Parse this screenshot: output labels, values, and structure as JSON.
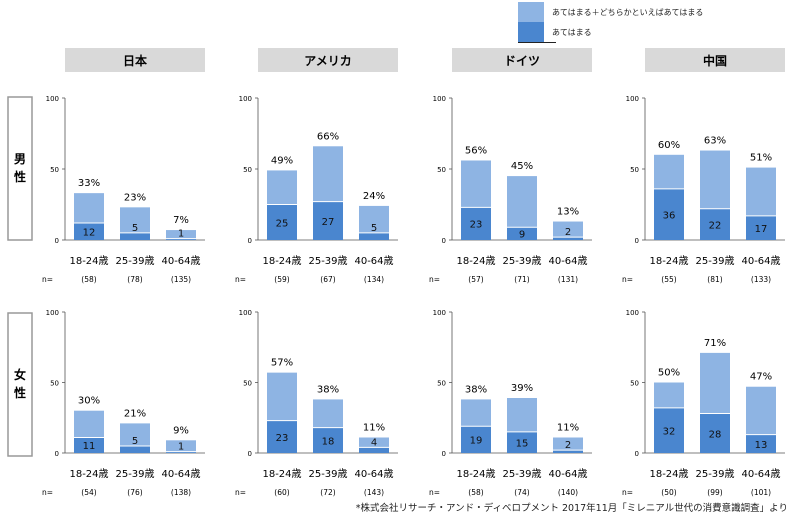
{
  "legend": {
    "items": [
      {
        "label": "あてはまる＋どちらかといえばあてはまる",
        "color": "#8eb4e3"
      },
      {
        "label": "あてはまる",
        "color": "#4a86cf"
      }
    ]
  },
  "colors": {
    "total": "#8eb4e3",
    "core": "#4a86cf",
    "header_bg": "#d9d9d9",
    "border": "#999999"
  },
  "footnote": "*株式会社リサーチ・アンド・ディベロプメント 2017年11月「ミレニアル世代の消費意識調査」より",
  "n_prefix": "n=",
  "gender_labels": [
    "男\n性",
    "女\n性"
  ],
  "chart_data": {
    "type": "bar",
    "subtype": "overlapping stacked bars, small multiples",
    "countries": [
      "日本",
      "アメリカ",
      "ドイツ",
      "中国"
    ],
    "categories": [
      "18-24歳",
      "25-39歳",
      "40-64歳"
    ],
    "ylim": [
      0,
      100
    ],
    "yticks": [
      0,
      50,
      100
    ],
    "series_names": [
      "あてはまる＋どちらかといえばあてはまる",
      "あてはまる"
    ],
    "panels": [
      {
        "country": "日本",
        "gender": "男性",
        "total": [
          33,
          23,
          7
        ],
        "core": [
          12,
          5,
          1
        ],
        "n": [
          "(58)",
          "(78)",
          "(135)"
        ]
      },
      {
        "country": "アメリカ",
        "gender": "男性",
        "total": [
          49,
          66,
          24
        ],
        "core": [
          25,
          27,
          5
        ],
        "n": [
          "(59)",
          "(67)",
          "(134)"
        ]
      },
      {
        "country": "ドイツ",
        "gender": "男性",
        "total": [
          56,
          45,
          13
        ],
        "core": [
          23,
          9,
          2
        ],
        "n": [
          "(57)",
          "(71)",
          "(131)"
        ]
      },
      {
        "country": "中国",
        "gender": "男性",
        "total": [
          60,
          63,
          51
        ],
        "core": [
          36,
          22,
          17
        ],
        "n": [
          "(55)",
          "(81)",
          "(133)"
        ]
      },
      {
        "country": "日本",
        "gender": "女性",
        "total": [
          30,
          21,
          9
        ],
        "core": [
          11,
          5,
          1
        ],
        "n": [
          "(54)",
          "(76)",
          "(138)"
        ]
      },
      {
        "country": "アメリカ",
        "gender": "女性",
        "total": [
          57,
          38,
          11
        ],
        "core": [
          23,
          18,
          4
        ],
        "n": [
          "(60)",
          "(72)",
          "(143)"
        ]
      },
      {
        "country": "ドイツ",
        "gender": "女性",
        "total": [
          38,
          39,
          11
        ],
        "core": [
          19,
          15,
          2
        ],
        "n": [
          "(58)",
          "(74)",
          "(140)"
        ]
      },
      {
        "country": "中国",
        "gender": "女性",
        "total": [
          50,
          71,
          47
        ],
        "core": [
          32,
          28,
          13
        ],
        "n": [
          "(50)",
          "(99)",
          "(101)"
        ]
      }
    ]
  }
}
